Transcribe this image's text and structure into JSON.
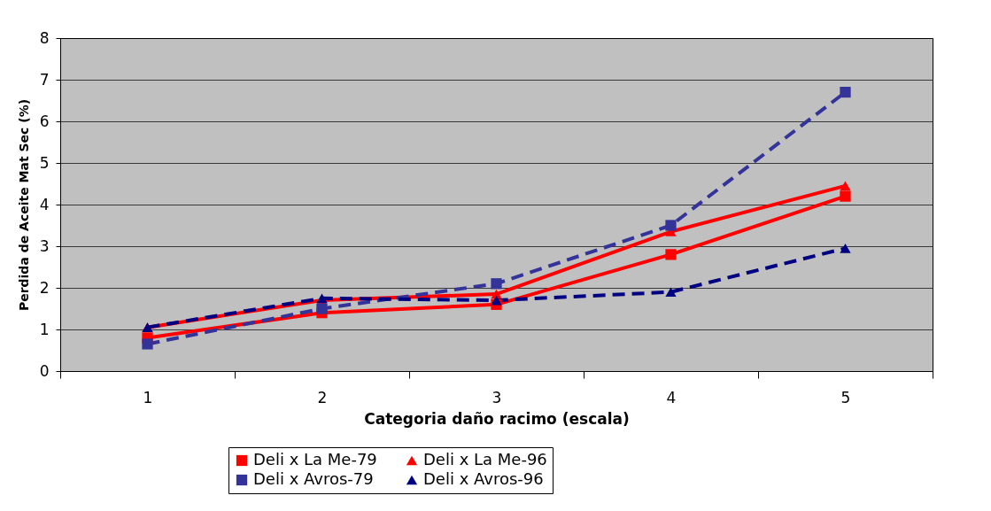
{
  "chart_data": {
    "type": "line",
    "xlabel": "Categoria daño racimo (escala)",
    "ylabel": "Perdida de Aceite Mat Sec (%)",
    "categories": [
      "1",
      "2",
      "3",
      "4",
      "5"
    ],
    "series": [
      {
        "name": "Deli x La Me-79",
        "color": "#ff0000",
        "marker": "square",
        "line_style": "solid",
        "values": [
          0.8,
          1.4,
          1.6,
          2.8,
          4.2
        ]
      },
      {
        "name": "Deli x La Me-96",
        "color": "#ff0000",
        "marker": "triangle",
        "line_style": "solid",
        "values": [
          1.05,
          1.7,
          1.85,
          3.35,
          4.45
        ]
      },
      {
        "name": "Deli x Avros-79",
        "color": "#333399",
        "marker": "square",
        "line_style": "dashed",
        "values": [
          0.65,
          1.5,
          2.1,
          3.5,
          6.7
        ]
      },
      {
        "name": "Deli x Avros-96",
        "color": "#000080",
        "marker": "triangle",
        "line_style": "dashed",
        "values": [
          1.05,
          1.75,
          1.7,
          1.9,
          2.95
        ]
      }
    ],
    "ylim": [
      0,
      8
    ],
    "yticks": [
      0,
      1,
      2,
      3,
      4,
      5,
      6,
      7,
      8
    ],
    "grid": "y",
    "legend": "bottom"
  }
}
